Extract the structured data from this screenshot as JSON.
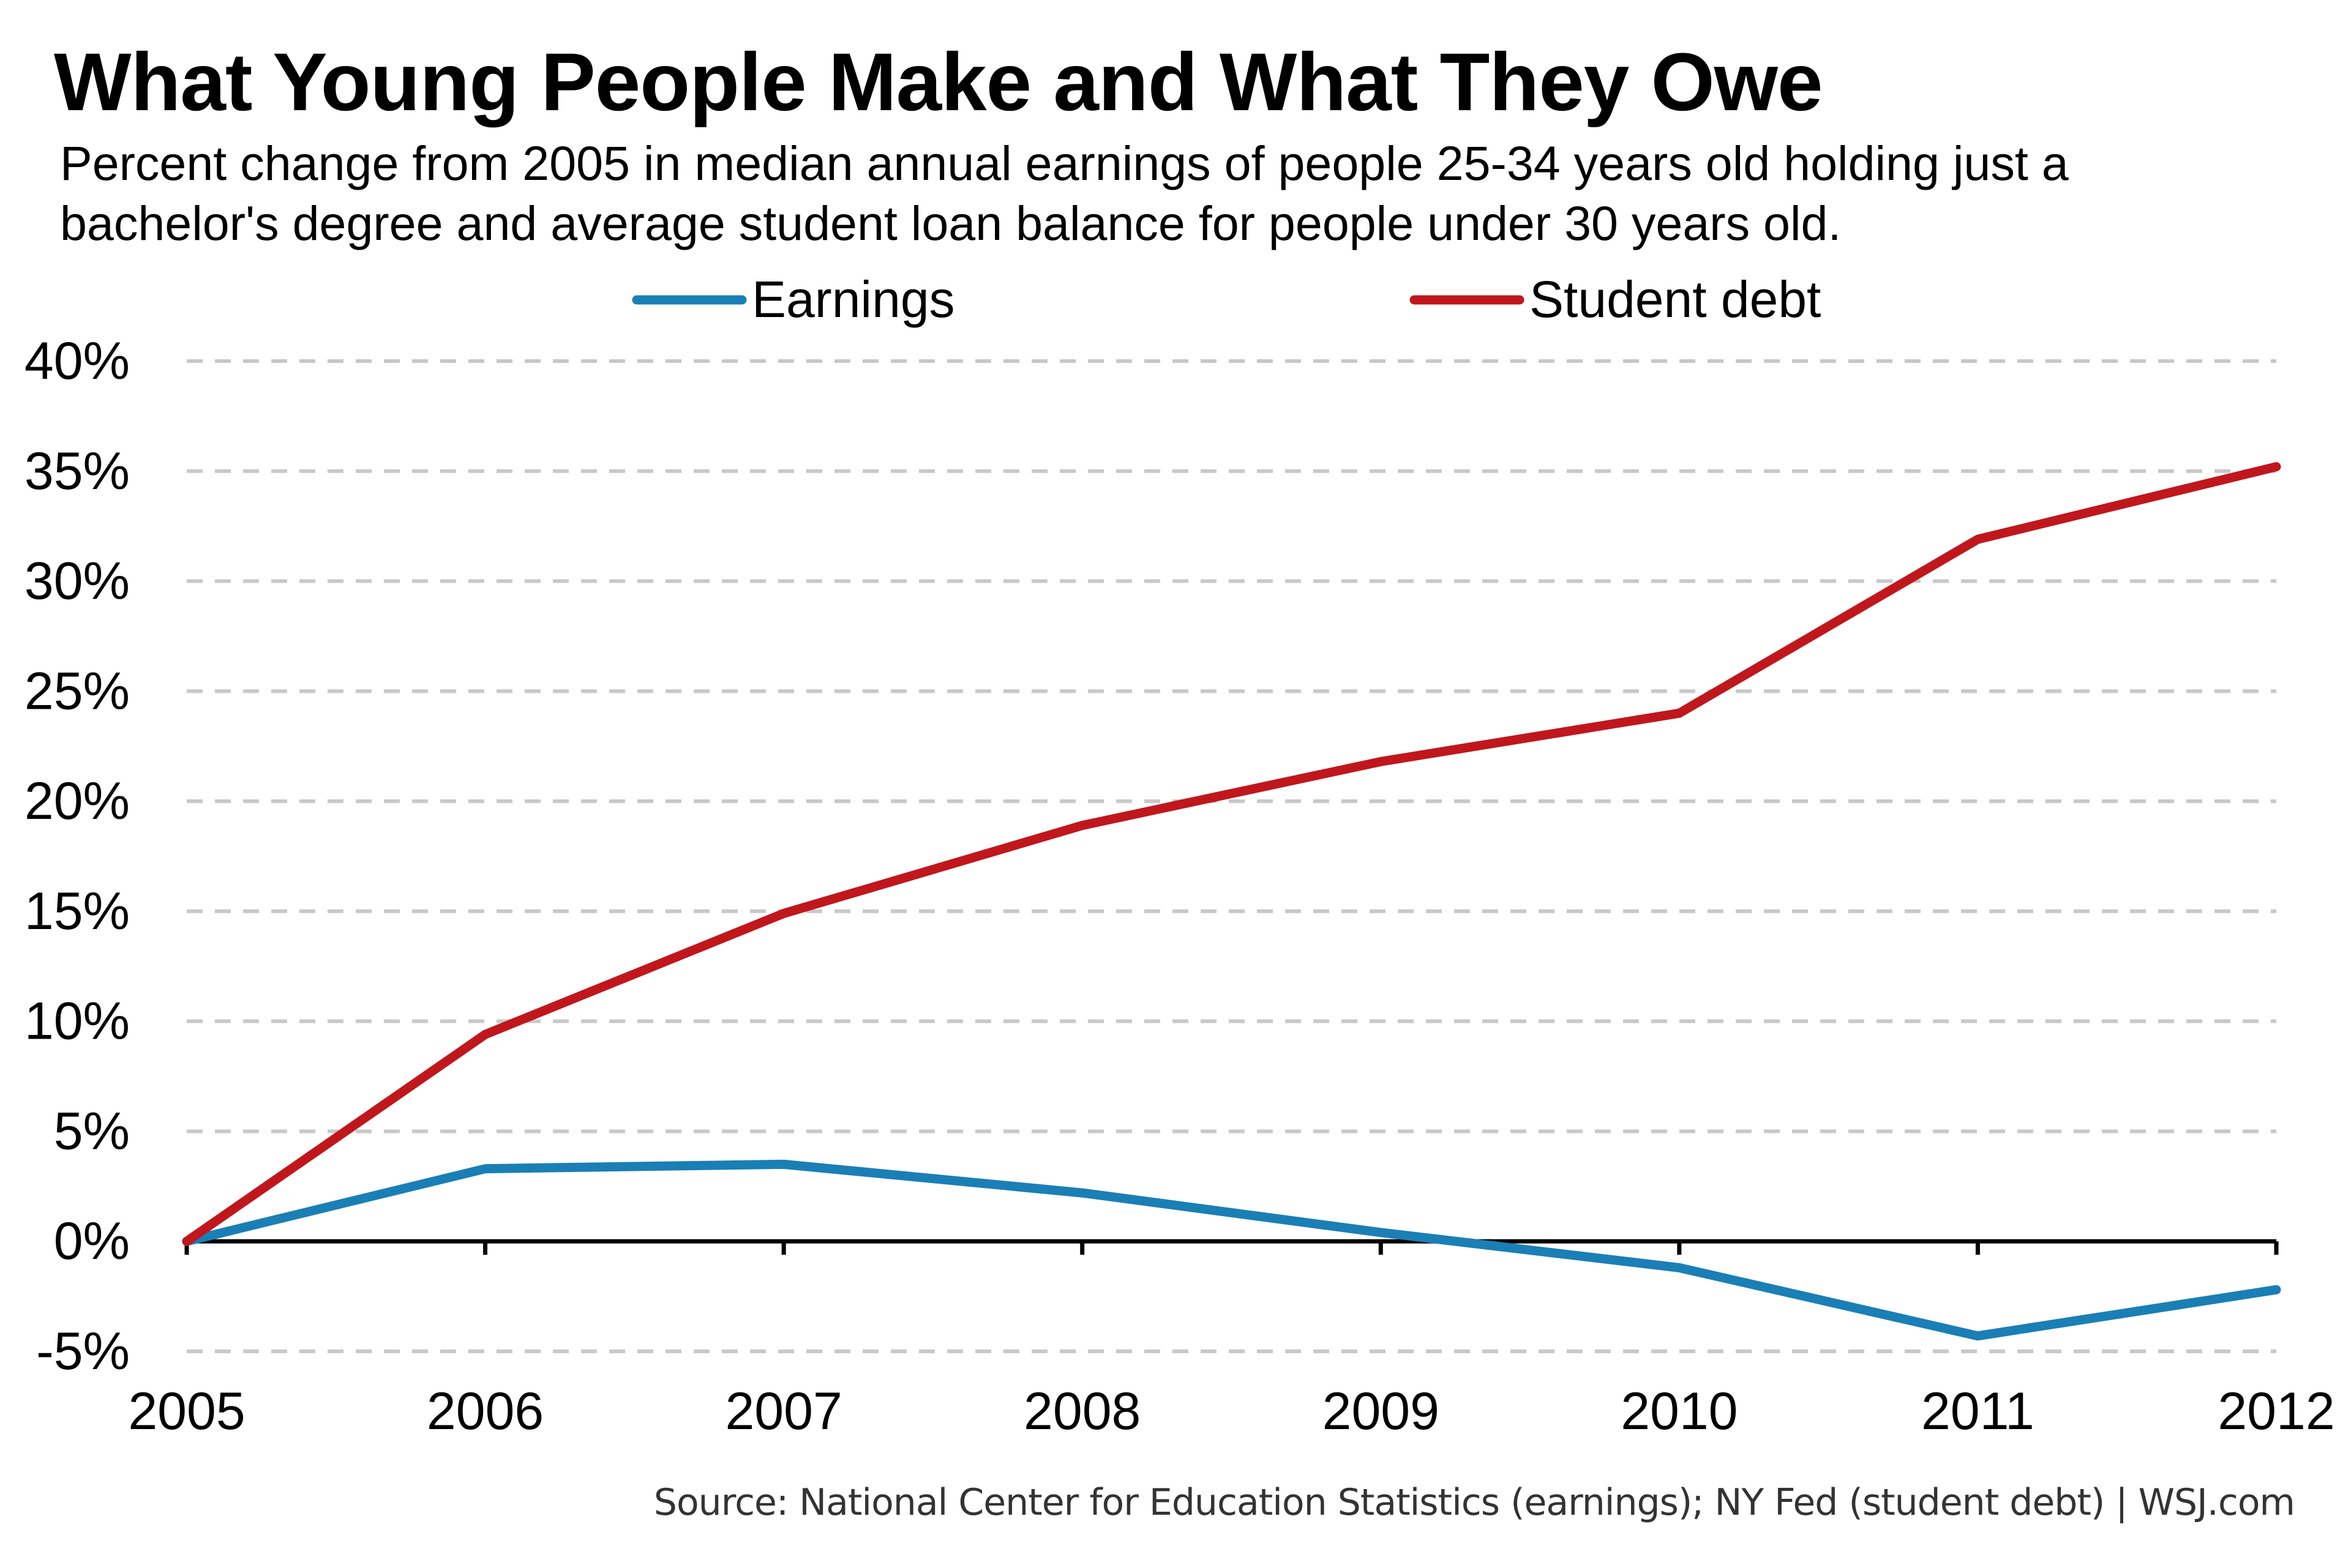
{
  "chart_data": {
    "type": "line",
    "title": "What Young People Make and What They Owe",
    "subtitle": "Percent change from 2005 in median annual earnings of people 25-34 years old holding just a bachelor's degree and average student loan balance for people under 30 years old.",
    "x": [
      "2005",
      "2006",
      "2007",
      "2008",
      "2009",
      "2010",
      "2011",
      "2012"
    ],
    "series": [
      {
        "name": "Earnings",
        "color": "#1a7fb5",
        "values": [
          0,
          3.3,
          3.5,
          2.2,
          0.4,
          -1.2,
          -4.3,
          -2.2
        ]
      },
      {
        "name": "Student debt",
        "color": "#c0171d",
        "values": [
          0,
          9.4,
          14.9,
          18.9,
          21.8,
          24.0,
          31.9,
          35.2
        ]
      }
    ],
    "ylim": [
      -5,
      40
    ],
    "yticks": [
      40,
      35,
      30,
      25,
      20,
      15,
      10,
      5,
      0,
      -5
    ],
    "ytick_labels": [
      "40%",
      "35%",
      "30%",
      "25%",
      "20%",
      "15%",
      "10%",
      "5%",
      "0%",
      "-5%"
    ],
    "xlabel": "",
    "ylabel": "",
    "grid": true,
    "legend_position": "top-center",
    "source": "Source: National Center for Education Statistics (earnings); NY Fed (student debt)  |  WSJ.com"
  }
}
